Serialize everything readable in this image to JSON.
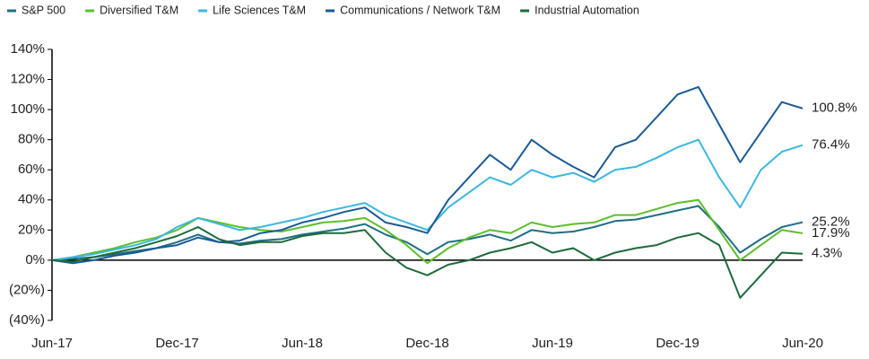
{
  "chart_data": {
    "type": "line",
    "categories": [
      "Jun-17",
      null,
      null,
      null,
      null,
      null,
      "Dec-17",
      null,
      null,
      null,
      null,
      null,
      "Jun-18",
      null,
      null,
      null,
      null,
      null,
      "Dec-18",
      null,
      null,
      null,
      null,
      null,
      "Jun-19",
      null,
      null,
      null,
      null,
      null,
      "Dec-19",
      null,
      null,
      null,
      null,
      null,
      "Jun-20"
    ],
    "ylim": [
      -40,
      140
    ],
    "yticks": [
      {
        "value": -40,
        "label": "(40%)"
      },
      {
        "value": -20,
        "label": "(20%)"
      },
      {
        "value": 0,
        "label": "0%"
      },
      {
        "value": 20,
        "label": "20%"
      },
      {
        "value": 40,
        "label": "40%"
      },
      {
        "value": 60,
        "label": "60%"
      },
      {
        "value": 80,
        "label": "80%"
      },
      {
        "value": 100,
        "label": "100%"
      },
      {
        "value": 120,
        "label": "120%"
      },
      {
        "value": 140,
        "label": "140%"
      }
    ],
    "grid": false,
    "legend": "top",
    "series": [
      {
        "name": "S&P 500",
        "color": "#1f6e82",
        "values": [
          0,
          1,
          2,
          4,
          6,
          8,
          12,
          17,
          12,
          11,
          13,
          14,
          17,
          19,
          21,
          24,
          17,
          12,
          4,
          12,
          14,
          17,
          13,
          20,
          18,
          19,
          22,
          26,
          27,
          30,
          33,
          36,
          22,
          5,
          14,
          22,
          25.2
        ],
        "value_labels": [
          null,
          null,
          null,
          null,
          null,
          null,
          null,
          null,
          null,
          null,
          null,
          null,
          null,
          null,
          null,
          null,
          null,
          null,
          null,
          null,
          null,
          null,
          null,
          null,
          null,
          null,
          null,
          null,
          null,
          null,
          null,
          null,
          null,
          null,
          null,
          null,
          "25.2%"
        ]
      },
      {
        "name": "Diversified T&M",
        "color": "#5cbf2a",
        "values": [
          0,
          2,
          5,
          8,
          12,
          15,
          20,
          28,
          25,
          22,
          20,
          19,
          22,
          25,
          26,
          28,
          20,
          10,
          -2,
          8,
          15,
          20,
          18,
          25,
          22,
          24,
          25,
          30,
          30,
          34,
          38,
          40,
          20,
          0,
          10,
          20,
          17.9
        ],
        "value_labels": [
          null,
          null,
          null,
          null,
          null,
          null,
          null,
          null,
          null,
          null,
          null,
          null,
          null,
          null,
          null,
          null,
          null,
          null,
          null,
          null,
          null,
          null,
          null,
          null,
          null,
          null,
          null,
          null,
          null,
          null,
          null,
          null,
          null,
          null,
          null,
          null,
          "17.9%"
        ]
      },
      {
        "name": "Life Sciences T&M",
        "color": "#3bb7e0",
        "values": [
          0,
          2,
          4,
          7,
          10,
          14,
          22,
          28,
          24,
          20,
          22,
          25,
          28,
          32,
          35,
          38,
          30,
          25,
          20,
          35,
          45,
          55,
          50,
          60,
          55,
          58,
          52,
          60,
          62,
          68,
          75,
          80,
          55,
          35,
          60,
          72,
          76.4
        ],
        "value_labels": [
          null,
          null,
          null,
          null,
          null,
          null,
          null,
          null,
          null,
          null,
          null,
          null,
          null,
          null,
          null,
          null,
          null,
          null,
          null,
          null,
          null,
          null,
          null,
          null,
          null,
          null,
          null,
          null,
          null,
          null,
          null,
          null,
          null,
          null,
          null,
          null,
          "76.4%"
        ]
      },
      {
        "name": "Communications / Network T&M",
        "color": "#1a5a96",
        "values": [
          0,
          -2,
          0,
          3,
          5,
          8,
          10,
          15,
          12,
          13,
          18,
          20,
          25,
          28,
          32,
          35,
          25,
          22,
          18,
          40,
          55,
          70,
          60,
          80,
          70,
          62,
          55,
          75,
          80,
          95,
          110,
          115,
          90,
          65,
          85,
          105,
          100.8
        ],
        "value_labels": [
          null,
          null,
          null,
          null,
          null,
          null,
          null,
          null,
          null,
          null,
          null,
          null,
          null,
          null,
          null,
          null,
          null,
          null,
          null,
          null,
          null,
          null,
          null,
          null,
          null,
          null,
          null,
          null,
          null,
          null,
          null,
          null,
          null,
          null,
          null,
          null,
          "100.8%"
        ]
      },
      {
        "name": "Industrial Automation",
        "color": "#1e6b3a",
        "values": [
          0,
          -1,
          2,
          5,
          8,
          12,
          16,
          22,
          14,
          10,
          12,
          12,
          16,
          18,
          18,
          20,
          5,
          -5,
          -10,
          -3,
          0,
          5,
          8,
          12,
          5,
          8,
          0,
          5,
          8,
          10,
          15,
          18,
          10,
          -25,
          -10,
          5,
          4.3
        ],
        "value_labels": [
          null,
          null,
          null,
          null,
          null,
          null,
          null,
          null,
          null,
          null,
          null,
          null,
          null,
          null,
          null,
          null,
          null,
          null,
          null,
          null,
          null,
          null,
          null,
          null,
          null,
          null,
          null,
          null,
          null,
          null,
          null,
          null,
          null,
          null,
          null,
          null,
          "4.3%"
        ]
      }
    ]
  }
}
